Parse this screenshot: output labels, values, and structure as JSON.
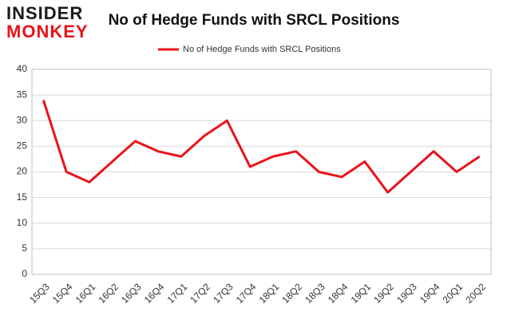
{
  "logo": {
    "line1": "INSIDER",
    "line2": "MONKEY"
  },
  "chart_data": {
    "type": "line",
    "title": "No of Hedge Funds with SRCL Positions",
    "categories": [
      "15Q3",
      "15Q4",
      "16Q1",
      "16Q2",
      "16Q3",
      "16Q4",
      "17Q1",
      "17Q2",
      "17Q3",
      "17Q4",
      "18Q1",
      "18Q2",
      "18Q3",
      "18Q4",
      "19Q1",
      "19Q2",
      "19Q3",
      "19Q4",
      "20Q1",
      "20Q2"
    ],
    "series": [
      {
        "name": "No of Hedge Funds with SRCL Positions",
        "color": "#e8141b",
        "values": [
          34,
          20,
          18,
          22,
          26,
          24,
          23,
          27,
          30,
          21,
          23,
          24,
          20,
          19,
          22,
          16,
          20,
          24,
          20,
          23
        ]
      }
    ],
    "ylim": [
      0,
      40
    ],
    "yticks": [
      0,
      5,
      10,
      15,
      20,
      25,
      30,
      35,
      40
    ],
    "grid": true,
    "legend": "top"
  }
}
